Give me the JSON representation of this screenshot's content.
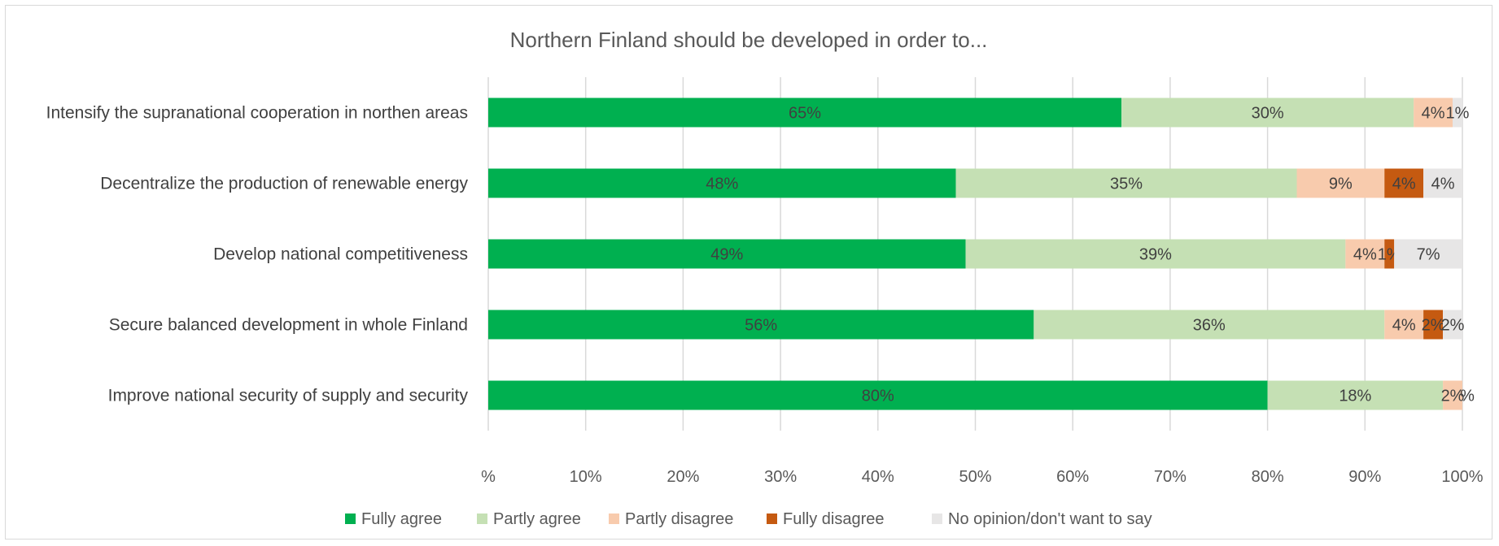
{
  "chart_data": {
    "type": "bar",
    "orientation": "horizontal",
    "stacked": "percent",
    "title": "Northern Finland should be developed in order to...",
    "categories": [
      "Intensify the supranational cooperation in northen areas",
      "Decentralize the production of renewable energy",
      "Develop national competitiveness",
      "Secure balanced development in whole Finland",
      "Improve national security of supply and security"
    ],
    "series": [
      {
        "name": "Fully agree",
        "color": "#00b050",
        "values": [
          65,
          48,
          49,
          56,
          80
        ],
        "labels": [
          "65%",
          "48%",
          "49%",
          "56%",
          "80%"
        ]
      },
      {
        "name": "Partly agree",
        "color": "#c5e0b4",
        "values": [
          30,
          35,
          39,
          36,
          18
        ],
        "labels": [
          "30%",
          "35%",
          "39%",
          "36%",
          "18%"
        ]
      },
      {
        "name": "Partly disagree",
        "color": "#f8cbad",
        "values": [
          4,
          9,
          4,
          4,
          2
        ],
        "labels": [
          "4%",
          "9%",
          "4%",
          "4%",
          "2%"
        ]
      },
      {
        "name": "Fully disagree",
        "color": "#c55a11",
        "values": [
          0,
          4,
          1,
          2,
          0
        ],
        "labels": [
          "",
          "4%",
          "1%",
          "2%",
          ""
        ]
      },
      {
        "name": "No opinion/don't want to say",
        "color": "#e7e6e6",
        "values": [
          1,
          4,
          7,
          2,
          0
        ],
        "labels": [
          "1%",
          "4%",
          "7%",
          "2%",
          "%"
        ]
      }
    ],
    "x_ticks": [
      "%",
      "10%",
      "20%",
      "30%",
      "40%",
      "50%",
      "60%",
      "70%",
      "80%",
      "90%",
      "100%"
    ],
    "xlim": [
      0,
      100
    ],
    "grid": true,
    "legend": "bottom"
  }
}
